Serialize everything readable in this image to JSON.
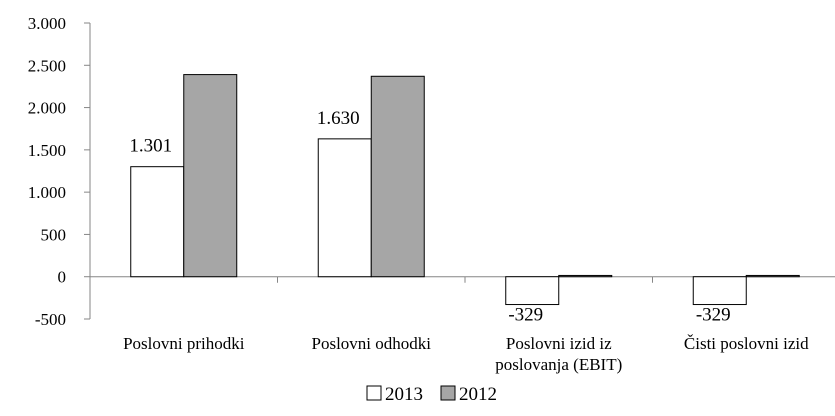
{
  "chart_data": {
    "type": "bar",
    "categories": [
      [
        "Poslovni prihodki"
      ],
      [
        "Poslovni odhodki"
      ],
      [
        "Poslovni izid iz",
        "poslovanja (EBIT)"
      ],
      [
        "Čisti poslovni izid"
      ]
    ],
    "series": [
      {
        "name": "2013",
        "values": [
          1301,
          1630,
          -329,
          -329
        ],
        "color": "#ffffff",
        "data_labels": [
          "1.301",
          "1.630",
          "-329",
          "-329"
        ]
      },
      {
        "name": "2012",
        "values": [
          2390,
          2370,
          15,
          15
        ],
        "color": "#a6a6a6"
      }
    ],
    "ylim": [
      -500,
      3000
    ],
    "yticks": [
      -500,
      0,
      500,
      1000,
      1500,
      2000,
      2500,
      3000
    ],
    "ytick_labels": [
      "-500",
      "0",
      "500",
      "1.000",
      "1.500",
      "2.000",
      "2.500",
      "3.000"
    ],
    "legend_position": "bottom",
    "grid": false
  }
}
